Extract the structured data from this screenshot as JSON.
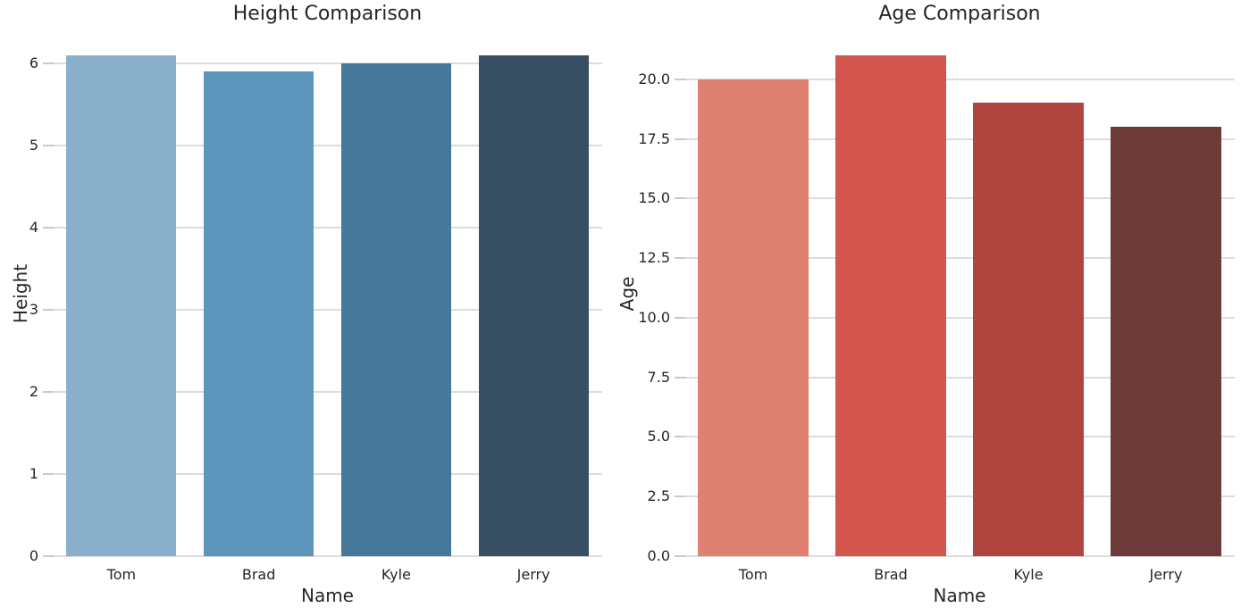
{
  "figure": {
    "background": "#ffffff",
    "text_color": "#262626"
  },
  "chart_data": [
    {
      "type": "bar",
      "title": "Height Comparison",
      "xlabel": "Name",
      "ylabel": "Height",
      "categories": [
        "Tom",
        "Brad",
        "Kyle",
        "Jerry"
      ],
      "values": [
        6.1,
        5.9,
        6.0,
        6.1
      ],
      "bar_colors": [
        "#8ab0cc",
        "#5d95bd",
        "#45789b",
        "#384e63"
      ],
      "ylim": [
        0,
        6.405
      ],
      "yticks": [
        0,
        1,
        2,
        3,
        4,
        5,
        6
      ],
      "ytick_labels": [
        "0",
        "1",
        "2",
        "3",
        "4",
        "5",
        "6"
      ],
      "grid": true,
      "legend": null
    },
    {
      "type": "bar",
      "title": "Age Comparison",
      "xlabel": "Name",
      "ylabel": "Age",
      "categories": [
        "Tom",
        "Brad",
        "Kyle",
        "Jerry"
      ],
      "values": [
        20,
        21,
        19,
        18
      ],
      "bar_colors": [
        "#de8173",
        "#d2564e",
        "#b0443f",
        "#6c3a38"
      ],
      "ylim": [
        0,
        22.05
      ],
      "yticks": [
        0,
        2.5,
        5,
        7.5,
        10,
        12.5,
        15,
        17.5,
        20
      ],
      "ytick_labels": [
        "0.0",
        "2.5",
        "5.0",
        "7.5",
        "10.0",
        "12.5",
        "15.0",
        "17.5",
        "20.0"
      ],
      "grid": true,
      "legend": null
    }
  ]
}
